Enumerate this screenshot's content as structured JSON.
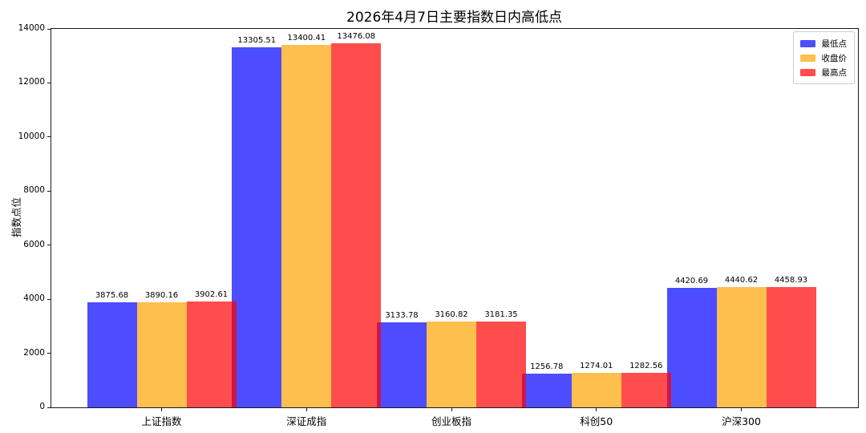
{
  "chart_data": {
    "type": "bar",
    "title": "2026年4月7日主要指数日内高低点",
    "xlabel": "",
    "ylabel": "指数点位",
    "categories": [
      "上证指数",
      "深证成指",
      "创业板指",
      "科创50",
      "沪深300"
    ],
    "series": [
      {
        "name": "最低点",
        "color": "#4d4dff",
        "values": [
          3875.68,
          13305.51,
          3133.78,
          1256.78,
          4420.69
        ]
      },
      {
        "name": "收盘价",
        "color": "#ffbf4d",
        "values": [
          3890.16,
          13400.41,
          3160.82,
          1274.01,
          4440.62
        ]
      },
      {
        "name": "最高点",
        "color": "#ff4d4d",
        "values": [
          3902.61,
          13476.08,
          3181.35,
          1282.56,
          4458.93
        ]
      }
    ],
    "value_labels": [
      [
        "3875.68",
        "13305.51",
        "3133.78",
        "1256.78",
        "4420.69"
      ],
      [
        "3890.16",
        "13400.41",
        "3160.82",
        "1274.01",
        "4440.62"
      ],
      [
        "3902.61",
        "13476.08",
        "3181.35",
        "1282.56",
        "4458.93"
      ]
    ],
    "ylim": [
      0,
      14000
    ],
    "yticks": [
      0,
      2000,
      4000,
      6000,
      8000,
      10000,
      12000,
      14000
    ],
    "grid": false,
    "legend_position": "upper right",
    "overlap_color": "#c9174d",
    "axis_color": "#1a1a1a"
  }
}
